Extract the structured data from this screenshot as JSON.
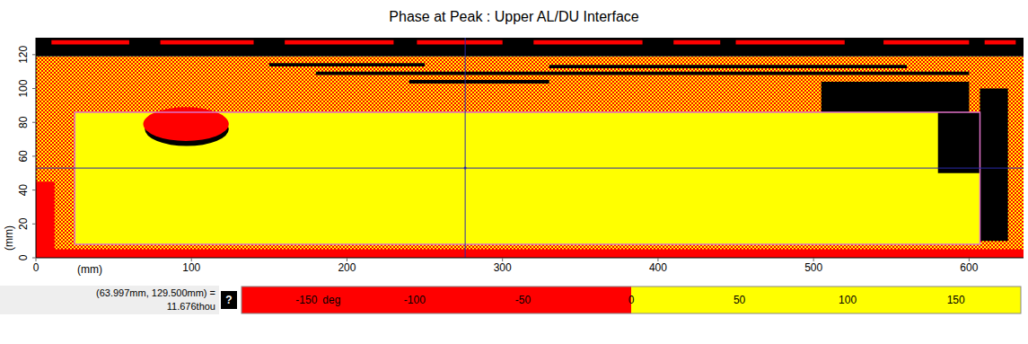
{
  "chart_data": {
    "type": "heatmap",
    "title": "Phase at Peak : Upper AL/DU Interface",
    "x_label": "(mm)",
    "y_label": "(mm)",
    "xlim": [
      0,
      635
    ],
    "xticks": [
      0,
      100,
      200,
      300,
      400,
      500,
      600
    ],
    "ylim": [
      0,
      130
    ],
    "yticks": [
      0,
      20,
      40,
      60,
      80,
      100,
      120
    ],
    "cells": [
      {
        "x": [
          0,
          635
        ],
        "y": [
          0,
          119
        ],
        "value": [
          -150,
          150
        ]
      },
      {
        "x": [
          0,
          635
        ],
        "y": [
          119,
          130
        ],
        "value": null
      },
      {
        "x": [
          0,
          12
        ],
        "y": [
          0,
          45
        ],
        "value": -150
      },
      {
        "x": [
          0,
          635
        ],
        "y": [
          0,
          5
        ],
        "value": -150
      },
      {
        "x": [
          25,
          607
        ],
        "y": [
          8,
          86
        ],
        "value": 150,
        "line_style": "solid"
      },
      {
        "x": [
          505,
          600
        ],
        "y": [
          86,
          104
        ],
        "value": null
      },
      {
        "x": [
          580,
          607
        ],
        "y": [
          50,
          86
        ],
        "value": null
      },
      {
        "x": [
          607,
          625
        ],
        "y": [
          10,
          100
        ],
        "value": null
      },
      {
        "x": [
          180,
          600
        ],
        "y": [
          108,
          110
        ],
        "value": null
      },
      {
        "x": [
          240,
          330
        ],
        "y": [
          103,
          105
        ],
        "value": null
      },
      {
        "x": [
          330,
          560
        ],
        "y": [
          112,
          114
        ],
        "value": null
      },
      {
        "x": [
          150,
          250
        ],
        "y": [
          113,
          115
        ],
        "value": null
      },
      {
        "x": [
          10,
          60
        ],
        "y": [
          126,
          128.5
        ],
        "value": -150
      },
      {
        "x": [
          80,
          140
        ],
        "y": [
          126,
          128.5
        ],
        "value": -150
      },
      {
        "x": [
          160,
          230
        ],
        "y": [
          126,
          128.5
        ],
        "value": -150
      },
      {
        "x": [
          245,
          300
        ],
        "y": [
          126,
          128.5
        ],
        "value": -150
      },
      {
        "x": [
          320,
          390
        ],
        "y": [
          126,
          128.5
        ],
        "value": -150
      },
      {
        "x": [
          410,
          440
        ],
        "y": [
          126,
          128.5
        ],
        "value": -150
      },
      {
        "x": [
          450,
          520
        ],
        "y": [
          126,
          128.5
        ],
        "value": -150
      },
      {
        "x": [
          545,
          600
        ],
        "y": [
          126,
          128.5
        ],
        "value": -150
      },
      {
        "x": [
          610,
          630
        ],
        "y": [
          126,
          128.5
        ],
        "value": -150
      },
      {
        "x": [
          70,
          124
        ],
        "y": [
          66,
          86
        ],
        "value": null,
        "marker": "ellipse"
      },
      {
        "x": [
          69,
          124
        ],
        "y": [
          69,
          89
        ],
        "value": -150,
        "marker": "ellipse"
      }
    ],
    "cursor": {
      "x": 276,
      "y": 53,
      "color": "#2a2aa8"
    },
    "colorbar": {
      "range": [
        -180,
        180
      ],
      "ticks": [
        -150,
        -100,
        -50,
        0,
        50,
        100,
        150
      ],
      "label": "deg",
      "colors": [
        "#ff0000",
        "#ffff00"
      ]
    },
    "readout": [
      "(63.997mm, 129.500mm) =",
      "11.676thou"
    ],
    "readout_button": "?"
  }
}
